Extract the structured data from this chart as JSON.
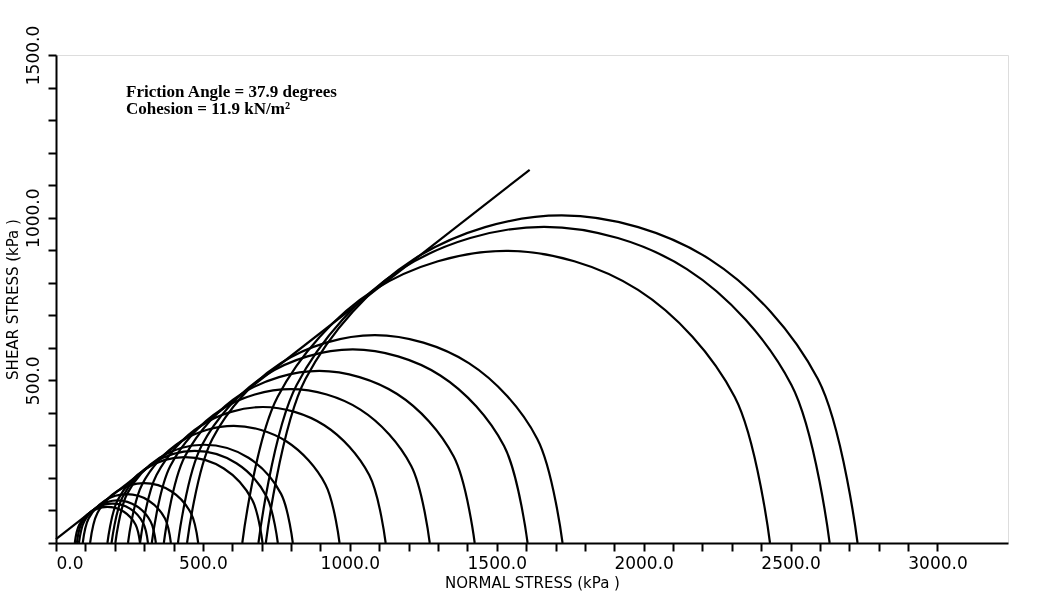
{
  "chart_data": {
    "type": "line",
    "xlabel": "NORMAL STRESS  (kPa )",
    "ylabel": "SHEAR STRESS   (kPa )",
    "annotations": [
      "Friction Angle = 37.9 degrees",
      "Cohesion = 11.9 kN/m²"
    ],
    "xlim": [
      0,
      3240
    ],
    "ylim": [
      0,
      1500
    ],
    "xticks": [
      {
        "value": 0,
        "label": "0.0"
      },
      {
        "value": 100,
        "label": null
      },
      {
        "value": 200,
        "label": null
      },
      {
        "value": 300,
        "label": null
      },
      {
        "value": 400,
        "label": null
      },
      {
        "value": 500,
        "label": "500.0"
      },
      {
        "value": 600,
        "label": null
      },
      {
        "value": 700,
        "label": null
      },
      {
        "value": 800,
        "label": null
      },
      {
        "value": 900,
        "label": null
      },
      {
        "value": 1000,
        "label": "1000.0"
      },
      {
        "value": 1100,
        "label": null
      },
      {
        "value": 1200,
        "label": null
      },
      {
        "value": 1300,
        "label": null
      },
      {
        "value": 1400,
        "label": null
      },
      {
        "value": 1500,
        "label": "1500.0"
      },
      {
        "value": 1600,
        "label": null
      },
      {
        "value": 1700,
        "label": null
      },
      {
        "value": 1800,
        "label": null
      },
      {
        "value": 1900,
        "label": null
      },
      {
        "value": 2000,
        "label": "2000.0"
      },
      {
        "value": 2100,
        "label": null
      },
      {
        "value": 2200,
        "label": null
      },
      {
        "value": 2300,
        "label": null
      },
      {
        "value": 2400,
        "label": null
      },
      {
        "value": 2500,
        "label": "2500.0"
      },
      {
        "value": 2600,
        "label": null
      },
      {
        "value": 2700,
        "label": null
      },
      {
        "value": 2800,
        "label": null
      },
      {
        "value": 2900,
        "label": null
      },
      {
        "value": 3000,
        "label": "3000.0"
      }
    ],
    "yticks": [
      {
        "value": 0,
        "label": null
      },
      {
        "value": 100,
        "label": null
      },
      {
        "value": 200,
        "label": null
      },
      {
        "value": 300,
        "label": null
      },
      {
        "value": 400,
        "label": null
      },
      {
        "value": 500,
        "label": "500.0"
      },
      {
        "value": 600,
        "label": null
      },
      {
        "value": 700,
        "label": null
      },
      {
        "value": 800,
        "label": null
      },
      {
        "value": 900,
        "label": null
      },
      {
        "value": 1000,
        "label": "1000.0"
      },
      {
        "value": 1100,
        "label": null
      },
      {
        "value": 1200,
        "label": null
      },
      {
        "value": 1300,
        "label": null
      },
      {
        "value": 1400,
        "label": null
      },
      {
        "value": 1500,
        "label": "1500.0"
      }
    ],
    "grid": false,
    "legend": false,
    "marker": "none",
    "line_style": "solid",
    "series": [
      {
        "color": "#000000",
        "x": [
          0,
          1612
        ],
        "values": [
          12,
          1147
        ]
      },
      {
        "color": "#000000",
        "x": [
          64,
          79,
          120,
          175,
          231,
          271,
          286
        ],
        "values": [
          0,
          56,
          96,
          111,
          96,
          56,
          0
        ]
      },
      {
        "color": "#000000",
        "x": [
          71,
          87,
          132,
          192,
          253,
          297,
          313
        ],
        "values": [
          0,
          61,
          105,
          121,
          105,
          61,
          0
        ]
      },
      {
        "color": "#000000",
        "x": [
          78,
          96,
          144,
          209,
          275,
          322,
          340
        ],
        "values": [
          0,
          66,
          113,
          131,
          113,
          66,
          0
        ]
      },
      {
        "color": "#000000",
        "x": [
          91,
          111,
          166,
          241,
          316,
          371,
          391
        ],
        "values": [
          0,
          75,
          130,
          150,
          130,
          75,
          0
        ]
      },
      {
        "color": "#000000",
        "x": [
          116,
          141,
          208,
          300,
          392,
          459,
          484
        ],
        "values": [
          0,
          92,
          159,
          184,
          159,
          92,
          0
        ]
      },
      {
        "color": "#000000",
        "x": [
          175,
          210,
          307,
          439,
          571,
          668,
          703
        ],
        "values": [
          0,
          132,
          229,
          264,
          229,
          132,
          0
        ]
      },
      {
        "color": "#000000",
        "x": [
          189,
          227,
          330,
          472,
          614,
          717,
          755
        ],
        "values": [
          0,
          142,
          245,
          283,
          245,
          142,
          0
        ]
      },
      {
        "color": "#000000",
        "x": [
          202,
          242,
          353,
          504,
          655,
          766,
          806
        ],
        "values": [
          0,
          151,
          262,
          302,
          262,
          151,
          0
        ]
      },
      {
        "color": "#000000",
        "x": [
          245,
          293,
          425,
          605,
          785,
          917,
          965
        ],
        "values": [
          0,
          180,
          312,
          360,
          312,
          180,
          0
        ]
      },
      {
        "color": "#000000",
        "x": [
          286,
          342,
          495,
          704,
          913,
          1066,
          1122
        ],
        "values": [
          0,
          209,
          362,
          418,
          362,
          209,
          0
        ]
      },
      {
        "color": "#000000",
        "x": [
          326,
          389,
          562,
          799,
          1036,
          1209,
          1272
        ],
        "values": [
          0,
          237,
          410,
          473,
          410,
          237,
          0
        ]
      },
      {
        "color": "#000000",
        "x": [
          367,
          438,
          631,
          896,
          1161,
          1354,
          1425
        ],
        "values": [
          0,
          265,
          458,
          529,
          458,
          265,
          0
        ]
      },
      {
        "color": "#000000",
        "x": [
          415,
          495,
          712,
          1010,
          1308,
          1525,
          1605
        ],
        "values": [
          0,
          298,
          515,
          595,
          515,
          298,
          0
        ]
      },
      {
        "color": "#000000",
        "x": [
          446,
          532,
          765,
          1085,
          1405,
          1638,
          1724
        ],
        "values": [
          0,
          320,
          553,
          639,
          553,
          320,
          0
        ]
      },
      {
        "color": "#000000",
        "x": [
          634,
          754,
          1083,
          1532,
          1981,
          2310,
          2430
        ],
        "values": [
          0,
          449,
          778,
          898,
          778,
          449,
          0
        ]
      },
      {
        "color": "#000000",
        "x": [
          689,
          819,
          1175,
          1661,
          2147,
          2503,
          2633
        ],
        "values": [
          0,
          486,
          842,
          972,
          842,
          486,
          0
        ]
      },
      {
        "color": "#000000",
        "x": [
          714,
          849,
          1217,
          1721,
          2225,
          2593,
          2728
        ],
        "values": [
          0,
          504,
          872,
          1007,
          872,
          504,
          0
        ]
      }
    ]
  }
}
